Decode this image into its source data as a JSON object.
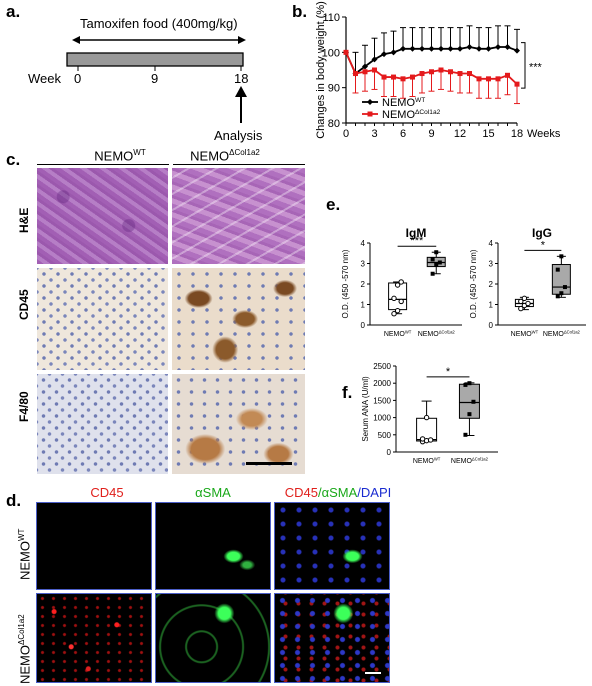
{
  "panels": {
    "a": "a.",
    "b": "b.",
    "c": "c.",
    "d": "d.",
    "e": "e.",
    "f": "f."
  },
  "panel_a": {
    "food_label": "Tamoxifen food (400mg/kg)",
    "week_label": "Week",
    "ticks": [
      "0",
      "9",
      "18"
    ],
    "analysis_label": "Analysis"
  },
  "groups": {
    "wt_base": "NEMO",
    "wt_sup": "WT",
    "ko_base": "NEMO",
    "ko_sup": "ΔCol1a2"
  },
  "panel_c": {
    "rows": [
      "H&E",
      "CD45",
      "F4/80"
    ]
  },
  "panel_d": {
    "col1": "CD45",
    "col2": "αSMA",
    "col3_a": "CD45",
    "col3_b": "/αSMA",
    "col3_c": "/DAPI"
  },
  "colors": {
    "wt": "#000000",
    "ko": "#e41a1c",
    "red_label": "#e0201c",
    "green_label": "#1aa81a",
    "blue_label": "#1a2bd0"
  },
  "chart_data": [
    {
      "id": "b",
      "type": "line",
      "ylabel": "Changes in body weight (%)",
      "xlabel": "Weeks",
      "ylim": [
        80,
        110
      ],
      "xlim": [
        0,
        18
      ],
      "yticks": [
        "80",
        "90",
        "100",
        "110"
      ],
      "xticks": [
        "0",
        "3",
        "6",
        "9",
        "12",
        "15",
        "18"
      ],
      "significance": "***",
      "x": [
        0,
        1,
        2,
        3,
        4,
        5,
        6,
        7,
        8,
        9,
        10,
        11,
        12,
        13,
        14,
        15,
        16,
        17,
        18
      ],
      "series": [
        {
          "name_base": "NEMO",
          "name_sup": "WT",
          "color": "#000000",
          "values": [
            100,
            94,
            96,
            98,
            99.5,
            100,
            101,
            101,
            101,
            101,
            101,
            101,
            101,
            101.5,
            101,
            101,
            101.5,
            101.5,
            100.5
          ]
        },
        {
          "name_base": "NEMO",
          "name_sup": "ΔCol1a2",
          "color": "#e41a1c",
          "values": [
            100,
            94,
            94.5,
            95,
            93,
            93,
            92.5,
            93,
            94,
            94.5,
            95,
            94.5,
            94,
            94,
            92.5,
            92.5,
            92.5,
            93.5,
            91
          ]
        }
      ]
    },
    {
      "id": "e1",
      "type": "box",
      "title": "IgM",
      "ylabel": "O.D. (450 -570 nm)",
      "ylim": [
        0,
        4
      ],
      "yticks": [
        "0",
        "1",
        "2",
        "3",
        "4"
      ],
      "significance": "***",
      "categories": [
        "NEMO^WT",
        "NEMO^ΔCol1a2"
      ],
      "boxes": [
        {
          "min": 0.55,
          "q1": 0.75,
          "median": 1.25,
          "q3": 2.05,
          "max": 2.1,
          "points": [
            0.55,
            0.7,
            1.15,
            1.3,
            1.95,
            2.1
          ]
        },
        {
          "min": 2.5,
          "q1": 2.85,
          "median": 3.05,
          "q3": 3.3,
          "max": 3.55,
          "points": [
            2.5,
            2.95,
            3.05,
            3.2,
            3.55
          ]
        }
      ]
    },
    {
      "id": "e2",
      "type": "box",
      "title": "IgG",
      "ylabel": "O.D. (450 -570 nm)",
      "ylim": [
        0,
        4
      ],
      "yticks": [
        "0",
        "1",
        "2",
        "3",
        "4"
      ],
      "significance": "*",
      "categories": [
        "NEMO^WT",
        "NEMO^ΔCol1a2"
      ],
      "boxes": [
        {
          "min": 0.75,
          "q1": 0.9,
          "median": 1.05,
          "q3": 1.25,
          "max": 1.35,
          "points": [
            0.8,
            0.95,
            1.05,
            1.15,
            1.3
          ]
        },
        {
          "min": 1.35,
          "q1": 1.5,
          "median": 1.85,
          "q3": 2.95,
          "max": 3.35,
          "points": [
            1.4,
            1.55,
            1.85,
            2.7,
            3.35
          ]
        }
      ]
    },
    {
      "id": "f",
      "type": "box",
      "ylabel": "Serum ANA (U/ml)",
      "ylim": [
        0,
        2500
      ],
      "yticks": [
        "0",
        "500",
        "1000",
        "1500",
        "2000",
        "2500"
      ],
      "significance": "*",
      "categories": [
        "NEMO^WT",
        "NEMO^ΔCol1a2"
      ],
      "boxes": [
        {
          "min": 300,
          "q1": 320,
          "median": 360,
          "q3": 980,
          "max": 1480,
          "points": [
            300,
            330,
            350,
            380,
            1000
          ]
        },
        {
          "min": 480,
          "q1": 980,
          "median": 1440,
          "q3": 1970,
          "max": 2010,
          "points": [
            500,
            1100,
            1460,
            1950,
            2000
          ]
        }
      ]
    }
  ]
}
